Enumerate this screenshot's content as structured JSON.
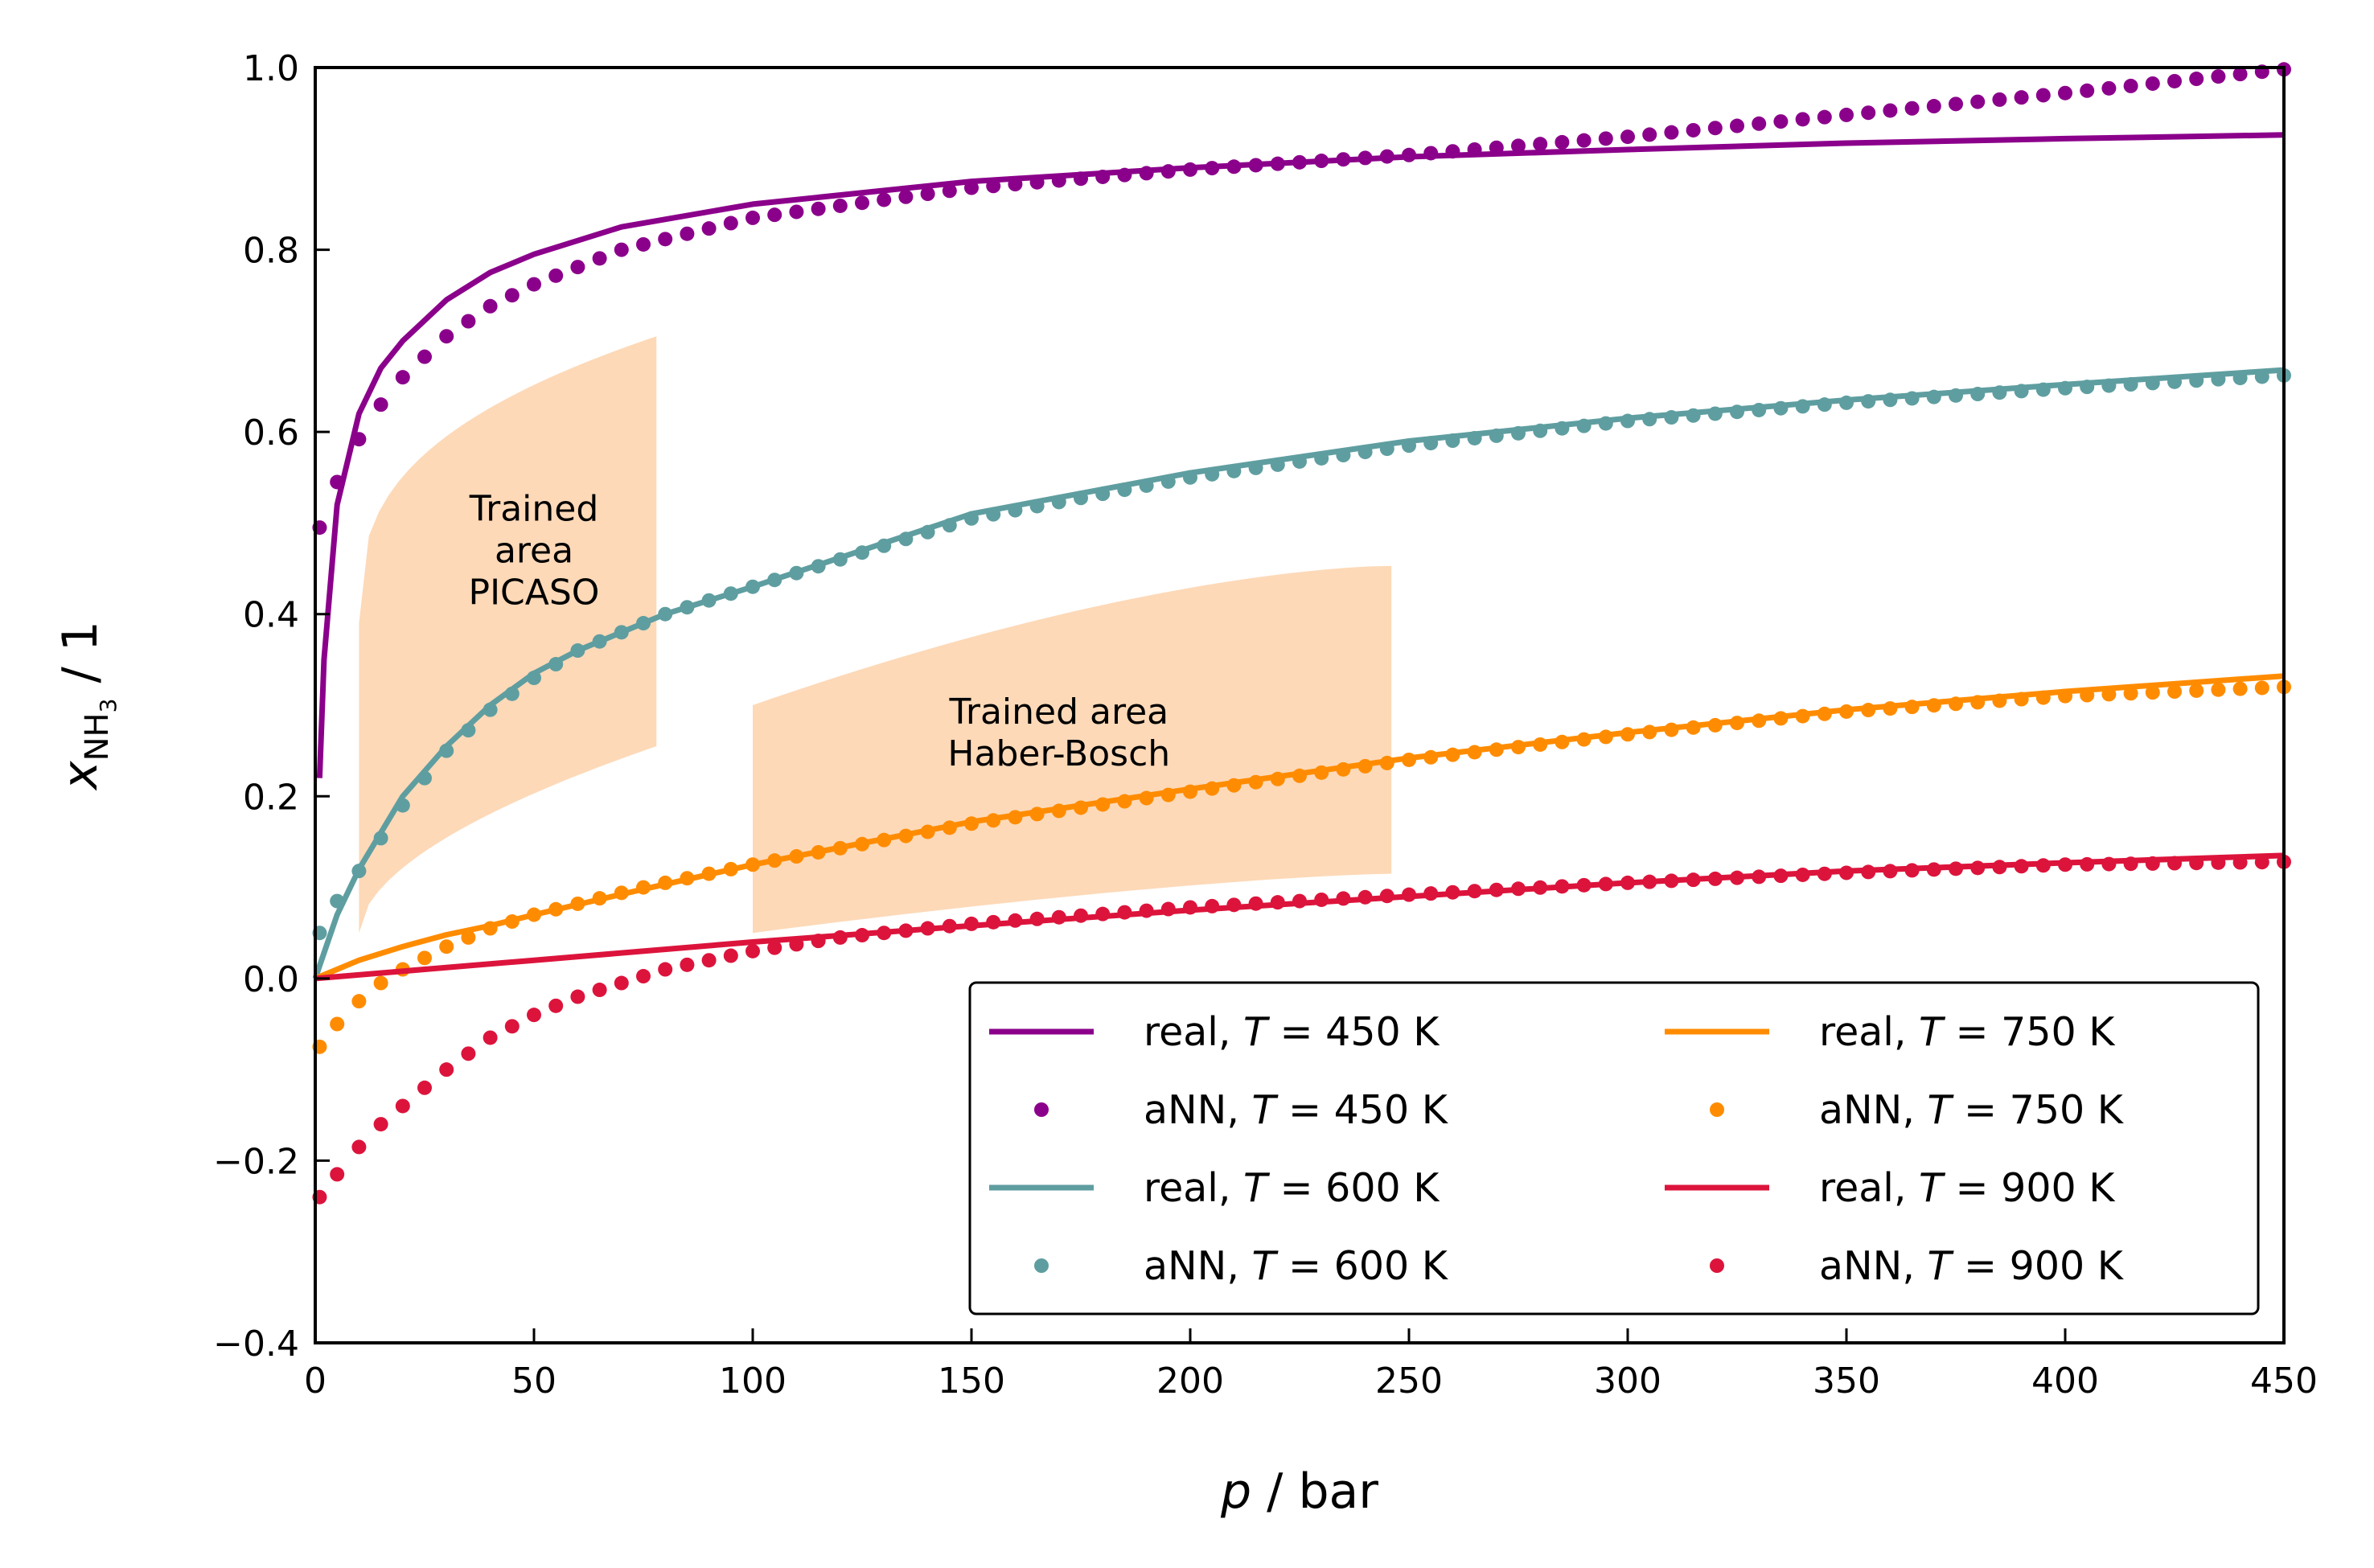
{
  "chart_data": {
    "type": "line",
    "title": "",
    "xlabel": {
      "var": "p",
      "unit": " / bar"
    },
    "ylabel": {
      "var": "x",
      "sub": "NH",
      "subsub": "3",
      "unit": " / 1"
    },
    "xlim": [
      0,
      450
    ],
    "ylim": [
      -0.4,
      1.0
    ],
    "xticks": [
      0,
      50,
      100,
      150,
      200,
      250,
      300,
      350,
      400,
      450
    ],
    "yticks": [
      -0.4,
      -0.2,
      0.0,
      0.2,
      0.4,
      0.6,
      0.8,
      1.0
    ],
    "ytick_labels": [
      "−0.4",
      "−0.2",
      "0.0",
      "0.2",
      "0.4",
      "0.6",
      "0.8",
      "1.0"
    ],
    "grid": false,
    "legend_position": "lower-right",
    "legend_columns": 2,
    "series": [
      {
        "name": "real, T = 450 K",
        "prefix": "real, ",
        "T": "T",
        "suffix": " = 450 K",
        "kind": "line",
        "color": "#8B008B",
        "x": [
          1,
          2,
          5,
          10,
          15,
          20,
          30,
          40,
          50,
          70,
          100,
          150,
          200,
          250,
          300,
          350,
          400,
          450
        ],
        "y": [
          0.22,
          0.35,
          0.52,
          0.62,
          0.67,
          0.7,
          0.745,
          0.775,
          0.795,
          0.825,
          0.85,
          0.875,
          0.89,
          0.902,
          0.91,
          0.917,
          0.922,
          0.926
        ]
      },
      {
        "name": "aNN, T = 450 K",
        "prefix": "aNN, ",
        "T": "T",
        "suffix": " = 450 K",
        "kind": "dots",
        "color": "#8B008B",
        "x": [
          1,
          5,
          10,
          15,
          20,
          30,
          40,
          50,
          70,
          100,
          150,
          200,
          250,
          300,
          350,
          400,
          450
        ],
        "y": [
          0.495,
          0.545,
          0.592,
          0.63,
          0.66,
          0.705,
          0.738,
          0.762,
          0.8,
          0.835,
          0.868,
          0.888,
          0.904,
          0.924,
          0.948,
          0.972,
          0.998
        ]
      },
      {
        "name": "real, T = 600 K",
        "prefix": "real, ",
        "T": "T",
        "suffix": " = 600 K",
        "kind": "line",
        "color": "#5F9EA0",
        "x": [
          0,
          5,
          10,
          20,
          30,
          40,
          50,
          60,
          80,
          100,
          150,
          200,
          250,
          300,
          350,
          400,
          450
        ],
        "y": [
          0.0,
          0.07,
          0.12,
          0.2,
          0.255,
          0.3,
          0.335,
          0.36,
          0.4,
          0.43,
          0.51,
          0.555,
          0.59,
          0.615,
          0.635,
          0.652,
          0.668
        ]
      },
      {
        "name": "aNN, T = 600 K",
        "prefix": "aNN, ",
        "T": "T",
        "suffix": " = 600 K",
        "kind": "dots",
        "color": "#5F9EA0",
        "x": [
          1,
          5,
          10,
          20,
          30,
          40,
          50,
          60,
          80,
          100,
          150,
          200,
          250,
          300,
          350,
          400,
          450
        ],
        "y": [
          0.05,
          0.085,
          0.118,
          0.19,
          0.25,
          0.295,
          0.33,
          0.36,
          0.4,
          0.43,
          0.505,
          0.55,
          0.585,
          0.612,
          0.632,
          0.648,
          0.662
        ]
      },
      {
        "name": "real, T = 750 K",
        "prefix": "real, ",
        "T": "T",
        "suffix": " = 750 K",
        "kind": "line",
        "color": "#FF8C00",
        "x": [
          0,
          10,
          20,
          30,
          40,
          50,
          75,
          100,
          150,
          200,
          250,
          300,
          350,
          400,
          450
        ],
        "y": [
          0.0,
          0.02,
          0.035,
          0.048,
          0.058,
          0.07,
          0.098,
          0.125,
          0.172,
          0.208,
          0.242,
          0.27,
          0.295,
          0.315,
          0.332
        ]
      },
      {
        "name": "aNN, T = 750 K",
        "prefix": "aNN, ",
        "T": "T",
        "suffix": " = 750 K",
        "kind": "dots",
        "color": "#FF8C00",
        "x": [
          1,
          5,
          10,
          15,
          20,
          30,
          40,
          50,
          75,
          100,
          150,
          200,
          250,
          300,
          350,
          400,
          450
        ],
        "y": [
          -0.075,
          -0.05,
          -0.025,
          -0.005,
          0.01,
          0.035,
          0.055,
          0.07,
          0.1,
          0.125,
          0.17,
          0.205,
          0.24,
          0.268,
          0.293,
          0.31,
          0.32
        ]
      },
      {
        "name": "real, T = 900 K",
        "prefix": "real, ",
        "T": "T",
        "suffix": " = 900 K",
        "kind": "line",
        "color": "#DC143C",
        "x": [
          0,
          25,
          50,
          100,
          150,
          200,
          250,
          300,
          350,
          400,
          450
        ],
        "y": [
          0.0,
          0.01,
          0.02,
          0.04,
          0.058,
          0.075,
          0.09,
          0.105,
          0.118,
          0.127,
          0.135
        ]
      },
      {
        "name": "aNN, T = 900 K",
        "prefix": "aNN, ",
        "T": "T",
        "suffix": " = 900 K",
        "kind": "dots",
        "color": "#DC143C",
        "x": [
          1,
          5,
          10,
          15,
          20,
          25,
          30,
          40,
          50,
          60,
          70,
          80,
          100,
          120,
          150,
          200,
          250,
          300,
          350,
          400,
          450
        ],
        "y": [
          -0.24,
          -0.215,
          -0.185,
          -0.16,
          -0.14,
          -0.12,
          -0.1,
          -0.065,
          -0.04,
          -0.02,
          -0.005,
          0.01,
          0.03,
          0.045,
          0.06,
          0.078,
          0.092,
          0.105,
          0.116,
          0.125,
          0.128
        ]
      }
    ],
    "shaded_regions": [
      {
        "color": "#FDD9B8",
        "label_lines": [
          "Trained",
          "area",
          "PICASO"
        ],
        "x0": 10,
        "x1": 78,
        "bottom": [
          0.05,
          0.255
        ],
        "top": [
          0.39,
          0.705
        ],
        "label_at": [
          50,
          0.47
        ]
      },
      {
        "color": "#FDD9B8",
        "label_lines": [
          "Trained area",
          "Haber-Bosch"
        ],
        "x0": 100,
        "x1": 246,
        "bottom": [
          0.05,
          0.115
        ],
        "top": [
          0.3,
          0.453
        ],
        "label_at": [
          170,
          0.27
        ]
      }
    ]
  }
}
